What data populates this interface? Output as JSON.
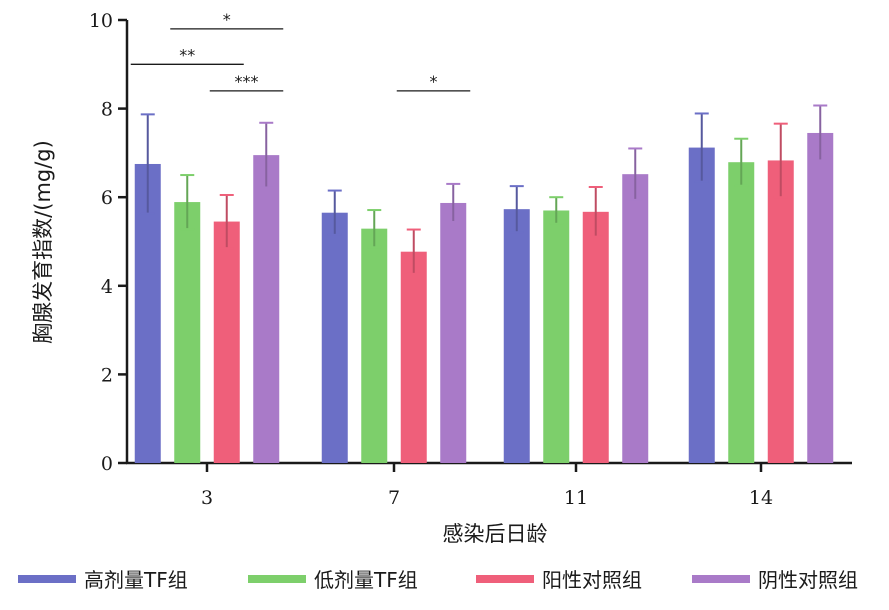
{
  "chart_data": {
    "type": "bar",
    "title": "",
    "xlabel": "感染后日龄",
    "ylabel": "胸腺发育指数/(mg/g)",
    "ylim": [
      0,
      10
    ],
    "yticks": [
      0,
      2,
      4,
      6,
      8,
      10
    ],
    "categories": [
      "3",
      "7",
      "11",
      "14"
    ],
    "series": [
      {
        "name": "高剂量TF组",
        "color": "#6b6fc6",
        "values": [
          6.75,
          5.65,
          5.73,
          7.12
        ],
        "errors": [
          1.12,
          0.5,
          0.52,
          0.77
        ]
      },
      {
        "name": "低剂量TF组",
        "color": "#7dcf6b",
        "values": [
          5.89,
          5.29,
          5.7,
          6.79
        ],
        "errors": [
          0.61,
          0.42,
          0.3,
          0.53
        ]
      },
      {
        "name": "阳性对照组",
        "color": "#ef5f7a",
        "values": [
          5.45,
          4.77,
          5.67,
          6.83
        ],
        "errors": [
          0.6,
          0.5,
          0.56,
          0.83
        ]
      },
      {
        "name": "阴性对照组",
        "color": "#a97ac8",
        "values": [
          6.95,
          5.87,
          6.52,
          7.45
        ],
        "errors": [
          0.73,
          0.43,
          0.58,
          0.62
        ]
      }
    ],
    "significance": [
      {
        "category": 0,
        "from_series": 0,
        "to_series": 2,
        "label": "**",
        "level": 9.0
      },
      {
        "category": 0,
        "from_series": 1,
        "to_series": 3,
        "label": "*",
        "level": 9.8
      },
      {
        "category": 0,
        "from_series": 2,
        "to_series": 3,
        "label": "***",
        "level": 8.4
      },
      {
        "category": 1,
        "from_series": 2,
        "to_series": 3,
        "label": "*",
        "level": 8.4
      }
    ],
    "legend_position": "bottom"
  }
}
